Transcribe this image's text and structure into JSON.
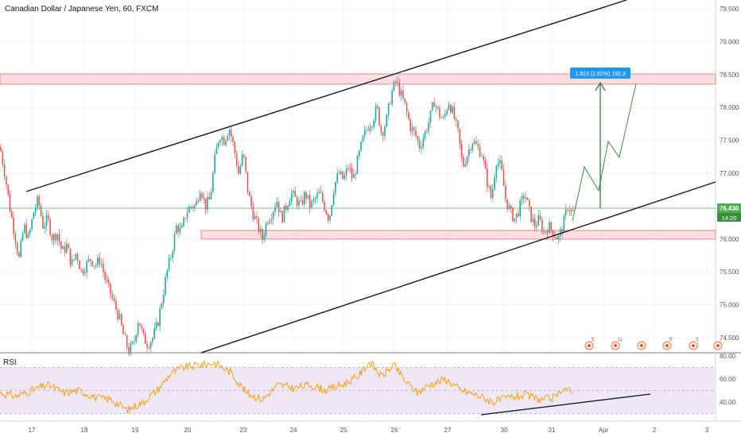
{
  "header": {
    "title": "Canadian Dollar / Japanese Yen, 60, FXCM"
  },
  "rsi": {
    "label": "RSI",
    "ticks": [
      "80.00",
      "60.00",
      "40.00"
    ]
  },
  "price_axis": {
    "ticks": [
      "79.500",
      "79.000",
      "78.500",
      "78.000",
      "77.500",
      "77.000",
      "76.500",
      "76.000",
      "75.500",
      "75.000",
      "74.500"
    ],
    "current_price": "76.430",
    "countdown": "14:20"
  },
  "time_axis": {
    "labels": [
      "17",
      "18",
      "19",
      "20",
      "23",
      "24",
      "25",
      "26",
      "27",
      "30",
      "31",
      "Apr",
      "2",
      "3"
    ]
  },
  "measure": {
    "text": "1.923 (2.52%) 192.3"
  },
  "events": {
    "labels": [
      "5",
      "11",
      "",
      "5",
      "3",
      ""
    ]
  },
  "colors": {
    "up": "#26a69a",
    "down": "#ef5350",
    "rsi_line": "#ff9800",
    "zone_fill": "#f8d7da",
    "zone_stroke": "#e57373",
    "accent": "#2196f3",
    "projection": "#2e7d32",
    "rsi_band": "#ede7f6"
  },
  "chart_data": [
    {
      "type": "candlestick",
      "title": "Canadian Dollar / Japanese Yen, 60, FXCM",
      "ylim": [
        74.1,
        79.6
      ],
      "x_ticks": [
        "17",
        "18",
        "19",
        "20",
        "23",
        "24",
        "25",
        "26",
        "27",
        "30",
        "31",
        "Apr",
        "2",
        "3"
      ],
      "y_ticks": [
        74.5,
        75.0,
        75.5,
        76.0,
        76.5,
        77.0,
        77.5,
        78.0,
        78.5,
        79.0,
        79.5
      ],
      "waypoints": [
        {
          "x": 0,
          "p": 77.4
        },
        {
          "x": 6,
          "p": 77.0
        },
        {
          "x": 12,
          "p": 76.5
        },
        {
          "x": 18,
          "p": 76.1
        },
        {
          "x": 24,
          "p": 75.7
        },
        {
          "x": 30,
          "p": 76.2
        },
        {
          "x": 36,
          "p": 76.0
        },
        {
          "x": 42,
          "p": 76.4
        },
        {
          "x": 48,
          "p": 76.6
        },
        {
          "x": 54,
          "p": 76.2
        },
        {
          "x": 60,
          "p": 76.3
        },
        {
          "x": 66,
          "p": 76.0
        },
        {
          "x": 72,
          "p": 76.1
        },
        {
          "x": 78,
          "p": 75.8
        },
        {
          "x": 84,
          "p": 75.9
        },
        {
          "x": 90,
          "p": 75.6
        },
        {
          "x": 96,
          "p": 75.8
        },
        {
          "x": 102,
          "p": 75.5
        },
        {
          "x": 108,
          "p": 75.6
        },
        {
          "x": 114,
          "p": 75.7
        },
        {
          "x": 120,
          "p": 75.6
        },
        {
          "x": 126,
          "p": 75.7
        },
        {
          "x": 132,
          "p": 75.4
        },
        {
          "x": 138,
          "p": 75.2
        },
        {
          "x": 144,
          "p": 75.0
        },
        {
          "x": 150,
          "p": 74.8
        },
        {
          "x": 156,
          "p": 74.5
        },
        {
          "x": 162,
          "p": 74.3
        },
        {
          "x": 168,
          "p": 74.4
        },
        {
          "x": 174,
          "p": 74.8
        },
        {
          "x": 180,
          "p": 74.5
        },
        {
          "x": 186,
          "p": 74.4
        },
        {
          "x": 192,
          "p": 74.5
        },
        {
          "x": 198,
          "p": 74.7
        },
        {
          "x": 204,
          "p": 75.1
        },
        {
          "x": 210,
          "p": 75.5
        },
        {
          "x": 216,
          "p": 75.8
        },
        {
          "x": 222,
          "p": 76.2
        },
        {
          "x": 228,
          "p": 76.1
        },
        {
          "x": 234,
          "p": 76.4
        },
        {
          "x": 240,
          "p": 76.5
        },
        {
          "x": 246,
          "p": 76.5
        },
        {
          "x": 252,
          "p": 76.8
        },
        {
          "x": 258,
          "p": 76.5
        },
        {
          "x": 264,
          "p": 76.6
        },
        {
          "x": 270,
          "p": 77.2
        },
        {
          "x": 276,
          "p": 77.6
        },
        {
          "x": 282,
          "p": 77.5
        },
        {
          "x": 288,
          "p": 77.7
        },
        {
          "x": 294,
          "p": 77.4
        },
        {
          "x": 300,
          "p": 77.0
        },
        {
          "x": 306,
          "p": 77.3
        },
        {
          "x": 312,
          "p": 76.7
        },
        {
          "x": 318,
          "p": 76.4
        },
        {
          "x": 324,
          "p": 76.2
        },
        {
          "x": 330,
          "p": 76.0
        },
        {
          "x": 336,
          "p": 76.3
        },
        {
          "x": 342,
          "p": 76.4
        },
        {
          "x": 348,
          "p": 76.6
        },
        {
          "x": 354,
          "p": 76.3
        },
        {
          "x": 360,
          "p": 76.5
        },
        {
          "x": 366,
          "p": 76.7
        },
        {
          "x": 372,
          "p": 76.6
        },
        {
          "x": 378,
          "p": 76.5
        },
        {
          "x": 384,
          "p": 76.7
        },
        {
          "x": 390,
          "p": 76.5
        },
        {
          "x": 396,
          "p": 76.6
        },
        {
          "x": 402,
          "p": 76.7
        },
        {
          "x": 408,
          "p": 76.5
        },
        {
          "x": 414,
          "p": 76.3
        },
        {
          "x": 420,
          "p": 76.8
        },
        {
          "x": 426,
          "p": 77.0
        },
        {
          "x": 432,
          "p": 76.9
        },
        {
          "x": 438,
          "p": 77.1
        },
        {
          "x": 444,
          "p": 76.9
        },
        {
          "x": 450,
          "p": 77.2
        },
        {
          "x": 456,
          "p": 77.5
        },
        {
          "x": 462,
          "p": 77.7
        },
        {
          "x": 468,
          "p": 77.8
        },
        {
          "x": 474,
          "p": 78.0
        },
        {
          "x": 480,
          "p": 77.6
        },
        {
          "x": 486,
          "p": 77.8
        },
        {
          "x": 492,
          "p": 78.2
        },
        {
          "x": 498,
          "p": 78.4
        },
        {
          "x": 504,
          "p": 78.2
        },
        {
          "x": 510,
          "p": 78.0
        },
        {
          "x": 516,
          "p": 77.7
        },
        {
          "x": 522,
          "p": 77.6
        },
        {
          "x": 528,
          "p": 77.4
        },
        {
          "x": 534,
          "p": 77.6
        },
        {
          "x": 540,
          "p": 77.8
        },
        {
          "x": 546,
          "p": 78.1
        },
        {
          "x": 552,
          "p": 77.9
        },
        {
          "x": 558,
          "p": 77.8
        },
        {
          "x": 564,
          "p": 78.1
        },
        {
          "x": 570,
          "p": 77.9
        },
        {
          "x": 576,
          "p": 77.6
        },
        {
          "x": 582,
          "p": 77.1
        },
        {
          "x": 588,
          "p": 77.3
        },
        {
          "x": 594,
          "p": 77.5
        },
        {
          "x": 600,
          "p": 77.4
        },
        {
          "x": 606,
          "p": 77.3
        },
        {
          "x": 612,
          "p": 76.9
        },
        {
          "x": 618,
          "p": 76.6
        },
        {
          "x": 624,
          "p": 77.2
        },
        {
          "x": 630,
          "p": 77.1
        },
        {
          "x": 636,
          "p": 76.6
        },
        {
          "x": 642,
          "p": 76.4
        },
        {
          "x": 648,
          "p": 76.3
        },
        {
          "x": 654,
          "p": 76.5
        },
        {
          "x": 660,
          "p": 76.7
        },
        {
          "x": 666,
          "p": 76.4
        },
        {
          "x": 672,
          "p": 76.2
        },
        {
          "x": 678,
          "p": 76.3
        },
        {
          "x": 684,
          "p": 76.1
        },
        {
          "x": 690,
          "p": 76.2
        },
        {
          "x": 696,
          "p": 76.1
        },
        {
          "x": 702,
          "p": 76.0
        },
        {
          "x": 708,
          "p": 76.2
        },
        {
          "x": 714,
          "p": 76.5
        },
        {
          "x": 720,
          "p": 76.4
        }
      ],
      "rsi_waypoints": [
        {
          "x": 0,
          "v": 48
        },
        {
          "x": 20,
          "v": 45
        },
        {
          "x": 40,
          "v": 50
        },
        {
          "x": 60,
          "v": 55
        },
        {
          "x": 80,
          "v": 48
        },
        {
          "x": 100,
          "v": 50
        },
        {
          "x": 120,
          "v": 44
        },
        {
          "x": 140,
          "v": 42
        },
        {
          "x": 160,
          "v": 33
        },
        {
          "x": 180,
          "v": 40
        },
        {
          "x": 200,
          "v": 52
        },
        {
          "x": 215,
          "v": 65
        },
        {
          "x": 230,
          "v": 70
        },
        {
          "x": 250,
          "v": 72
        },
        {
          "x": 270,
          "v": 74
        },
        {
          "x": 290,
          "v": 66
        },
        {
          "x": 310,
          "v": 48
        },
        {
          "x": 330,
          "v": 42
        },
        {
          "x": 350,
          "v": 55
        },
        {
          "x": 370,
          "v": 52
        },
        {
          "x": 390,
          "v": 55
        },
        {
          "x": 410,
          "v": 50
        },
        {
          "x": 430,
          "v": 55
        },
        {
          "x": 450,
          "v": 62
        },
        {
          "x": 465,
          "v": 75
        },
        {
          "x": 480,
          "v": 62
        },
        {
          "x": 495,
          "v": 72
        },
        {
          "x": 510,
          "v": 58
        },
        {
          "x": 525,
          "v": 48
        },
        {
          "x": 540,
          "v": 55
        },
        {
          "x": 560,
          "v": 60
        },
        {
          "x": 580,
          "v": 50
        },
        {
          "x": 600,
          "v": 46
        },
        {
          "x": 620,
          "v": 40
        },
        {
          "x": 640,
          "v": 44
        },
        {
          "x": 660,
          "v": 46
        },
        {
          "x": 680,
          "v": 42
        },
        {
          "x": 700,
          "v": 44
        },
        {
          "x": 708,
          "v": 53
        },
        {
          "x": 715,
          "v": 50
        },
        {
          "x": 720,
          "v": 47
        }
      ]
    }
  ]
}
